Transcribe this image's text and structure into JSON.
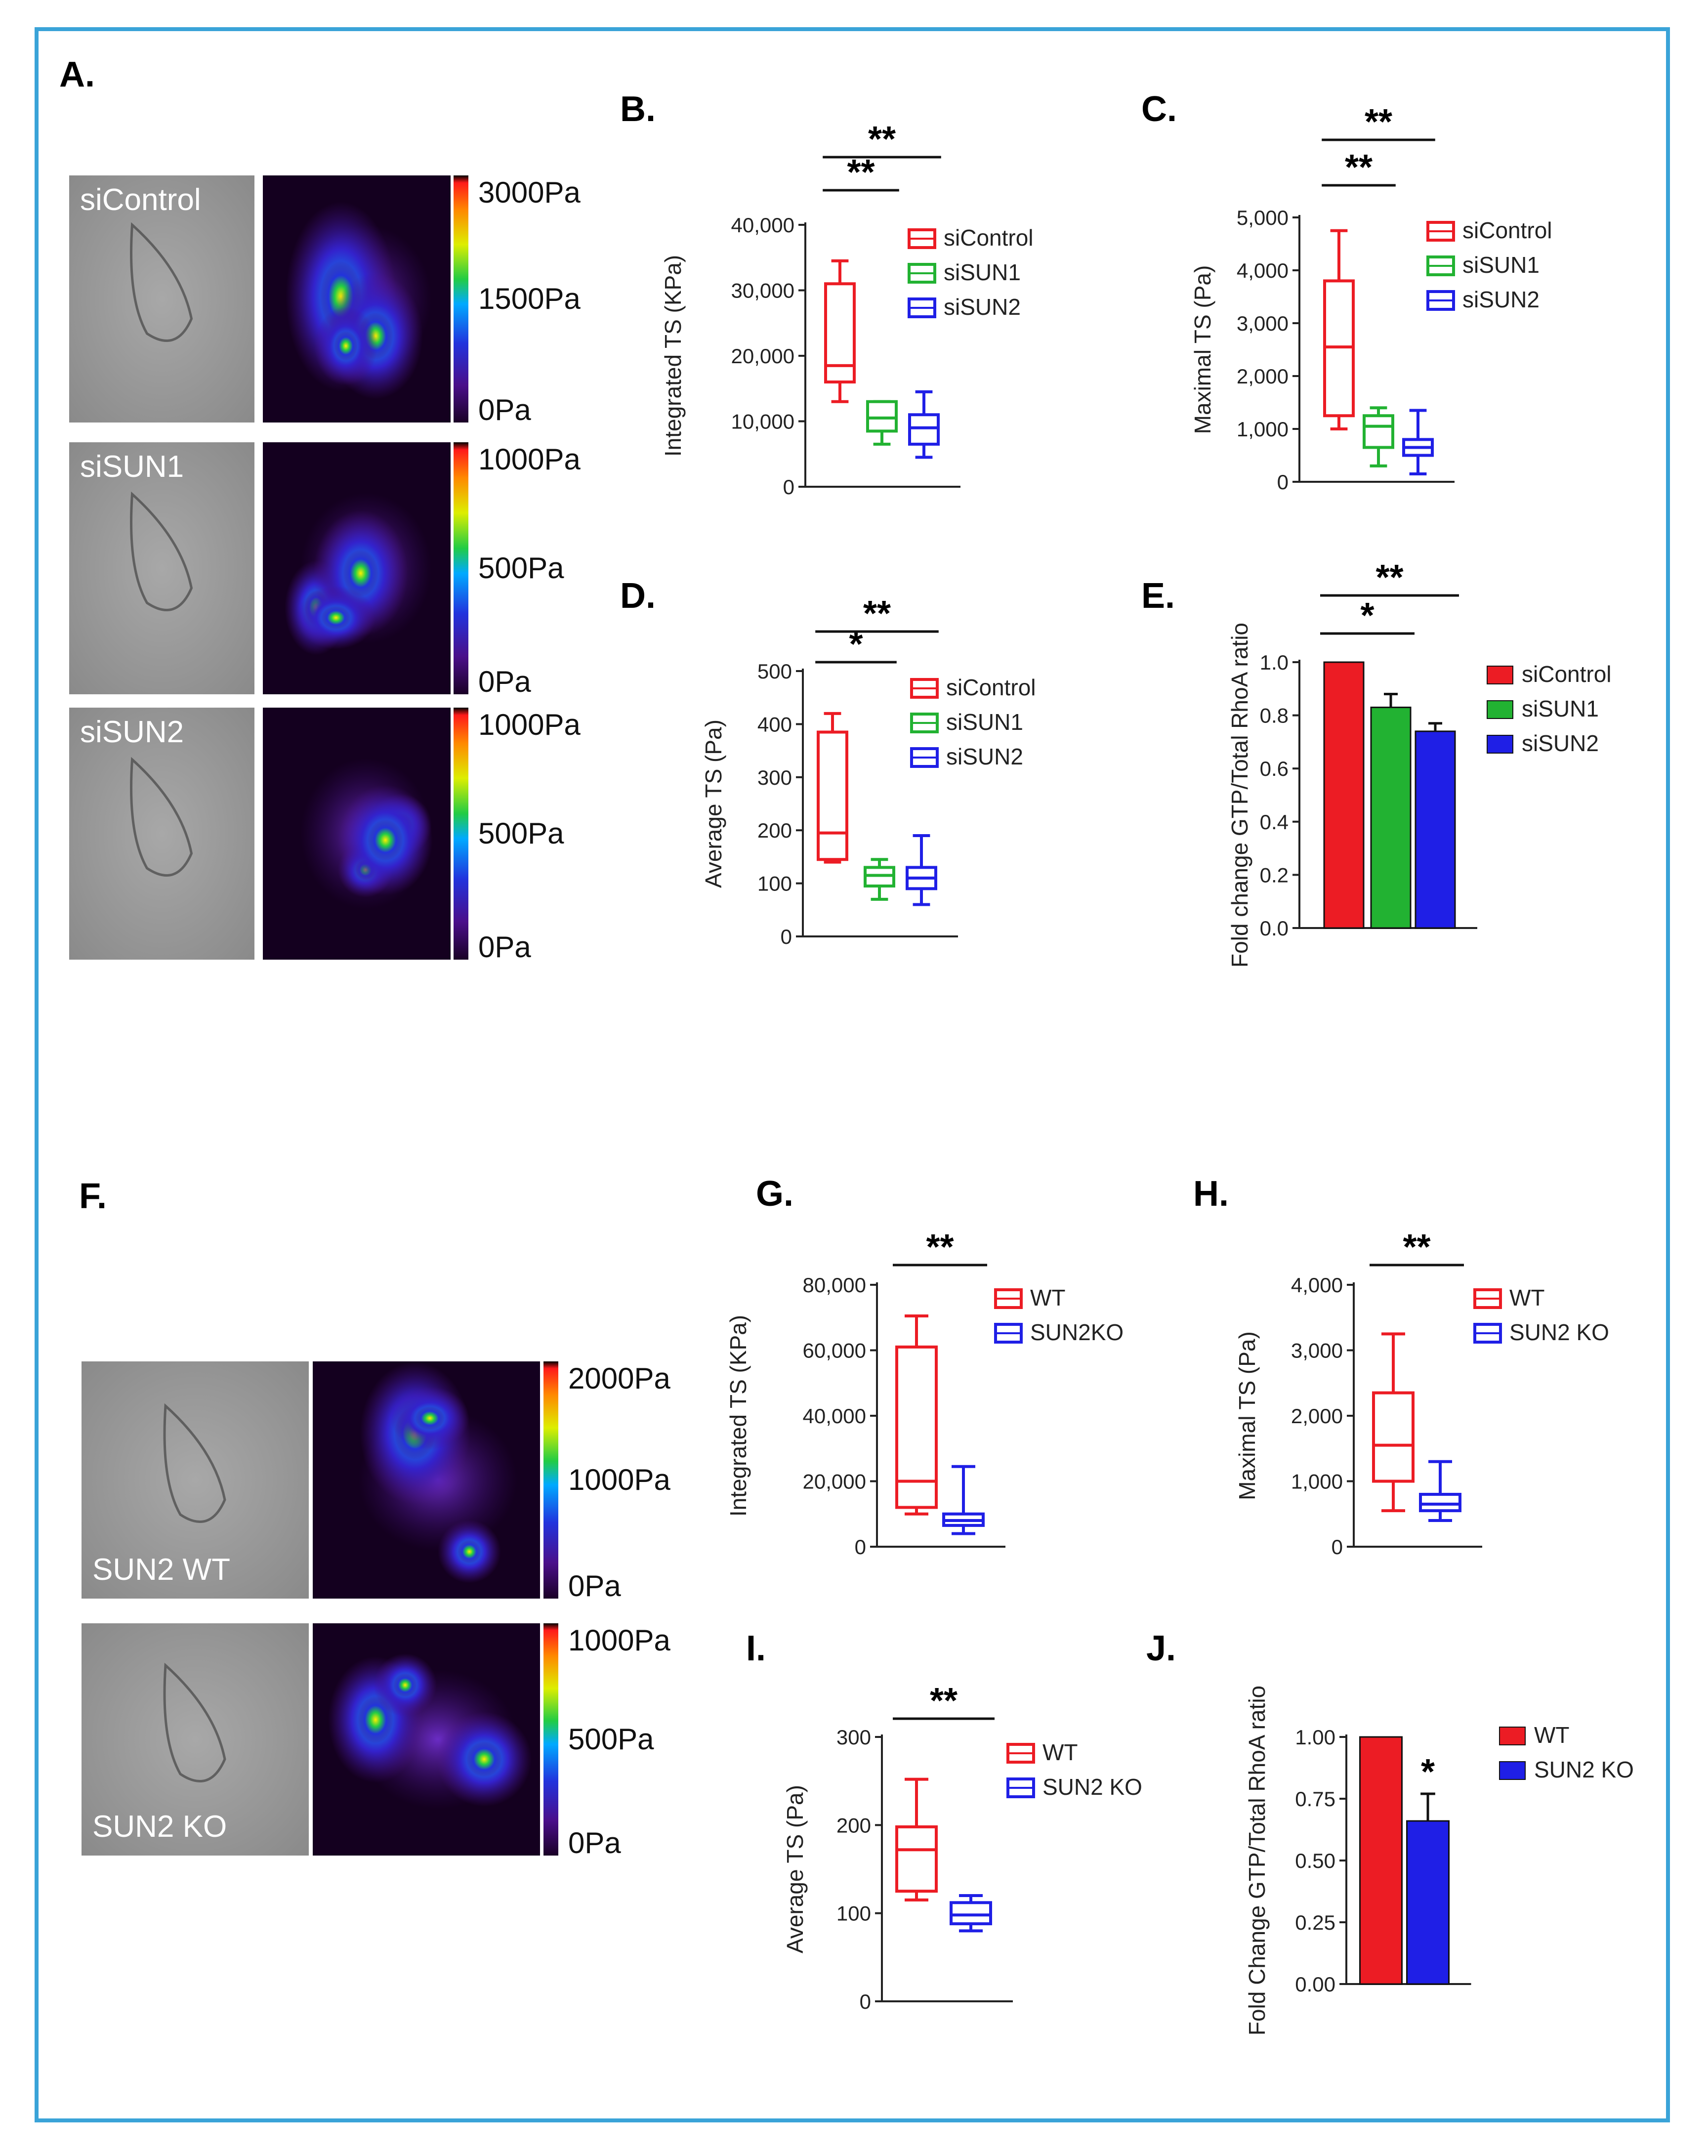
{
  "colors": {
    "red": "#ec1c24",
    "green": "#22b232",
    "blue": "#1f1fe6",
    "frame": "#3aa3d8"
  },
  "images": {
    "A": {
      "letter": "A.",
      "rows": [
        {
          "label": "siControl",
          "scale": [
            "3000Pa",
            "1500Pa",
            "0Pa"
          ]
        },
        {
          "label": "siSUN1",
          "scale": [
            "1000Pa",
            "500Pa",
            "0Pa"
          ]
        },
        {
          "label": "siSUN2",
          "scale": [
            "1000Pa",
            "500Pa",
            "0Pa"
          ]
        }
      ]
    },
    "F": {
      "letter": "F.",
      "rows": [
        {
          "label": "SUN2 WT",
          "scale": [
            "2000Pa",
            "1000Pa",
            "0Pa"
          ]
        },
        {
          "label": "SUN2 KO",
          "scale": [
            "1000Pa",
            "500Pa",
            "0Pa"
          ]
        }
      ]
    }
  },
  "chart_data": [
    {
      "id": "B",
      "letter": "B.",
      "type": "box",
      "ylabel": "Integrated TS (KPa)",
      "ylim": [
        0,
        40000
      ],
      "ticks": [
        {
          "v": 0,
          "t": "0"
        },
        {
          "v": 10000,
          "t": "10,000"
        },
        {
          "v": 20000,
          "t": "20,000"
        },
        {
          "v": 30000,
          "t": "30,000"
        },
        {
          "v": 40000,
          "t": "40,000"
        }
      ],
      "series": [
        {
          "name": "siControl",
          "color": "red",
          "min": 13000,
          "q1": 16000,
          "med": 18500,
          "q3": 31000,
          "max": 34500
        },
        {
          "name": "siSUN1",
          "color": "green",
          "min": 6500,
          "q1": 8500,
          "med": 10500,
          "q3": 13000,
          "max": 13000
        },
        {
          "name": "siSUN2",
          "color": "blue",
          "min": 4500,
          "q1": 6500,
          "med": 9000,
          "q3": 11000,
          "max": 14500
        }
      ],
      "sig": [
        {
          "label": "**",
          "from": 0,
          "to": 1
        },
        {
          "label": "**",
          "from": 0,
          "to": 2
        }
      ]
    },
    {
      "id": "C",
      "letter": "C.",
      "type": "box",
      "ylabel": "Maximal TS (Pa)",
      "ylim": [
        0,
        5000
      ],
      "ticks": [
        {
          "v": 0,
          "t": "0"
        },
        {
          "v": 1000,
          "t": "1,000"
        },
        {
          "v": 2000,
          "t": "2,000"
        },
        {
          "v": 3000,
          "t": "3,000"
        },
        {
          "v": 4000,
          "t": "4,000"
        },
        {
          "v": 5000,
          "t": "5,000"
        }
      ],
      "series": [
        {
          "name": "siControl",
          "color": "red",
          "min": 1000,
          "q1": 1250,
          "med": 2550,
          "q3": 3800,
          "max": 4750
        },
        {
          "name": "siSUN1",
          "color": "green",
          "min": 300,
          "q1": 650,
          "med": 1050,
          "q3": 1250,
          "max": 1400
        },
        {
          "name": "siSUN2",
          "color": "blue",
          "min": 150,
          "q1": 500,
          "med": 650,
          "q3": 800,
          "max": 1350
        }
      ],
      "sig": [
        {
          "label": "**",
          "from": 0,
          "to": 1
        },
        {
          "label": "**",
          "from": 0,
          "to": 2
        }
      ]
    },
    {
      "id": "D",
      "letter": "D.",
      "type": "box",
      "ylabel": "Average TS (Pa)",
      "ylim": [
        0,
        500
      ],
      "ticks": [
        {
          "v": 0,
          "t": "0"
        },
        {
          "v": 100,
          "t": "100"
        },
        {
          "v": 200,
          "t": "200"
        },
        {
          "v": 300,
          "t": "300"
        },
        {
          "v": 400,
          "t": "400"
        },
        {
          "v": 500,
          "t": "500"
        }
      ],
      "series": [
        {
          "name": "siControl",
          "color": "red",
          "min": 140,
          "q1": 145,
          "med": 195,
          "q3": 385,
          "max": 420
        },
        {
          "name": "siSUN1",
          "color": "green",
          "min": 70,
          "q1": 95,
          "med": 115,
          "q3": 130,
          "max": 145
        },
        {
          "name": "siSUN2",
          "color": "blue",
          "min": 60,
          "q1": 90,
          "med": 110,
          "q3": 130,
          "max": 190
        }
      ],
      "sig": [
        {
          "label": "*",
          "from": 0,
          "to": 1
        },
        {
          "label": "**",
          "from": 0,
          "to": 2
        }
      ]
    },
    {
      "id": "E",
      "letter": "E.",
      "type": "bar",
      "ylabel": "Fold change GTP/Total RhoA ratio",
      "ylim": [
        0,
        1.0
      ],
      "ticks": [
        {
          "v": 0,
          "t": "0.0"
        },
        {
          "v": 0.2,
          "t": "0.2"
        },
        {
          "v": 0.4,
          "t": "0.4"
        },
        {
          "v": 0.6,
          "t": "0.6"
        },
        {
          "v": 0.8,
          "t": "0.8"
        },
        {
          "v": 1.0,
          "t": "1.0"
        }
      ],
      "series": [
        {
          "name": "siControl",
          "color": "red",
          "value": 1.0,
          "err": 0
        },
        {
          "name": "siSUN1",
          "color": "green",
          "value": 0.83,
          "err": 0.05
        },
        {
          "name": "siSUN2",
          "color": "blue",
          "value": 0.74,
          "err": 0.03
        }
      ],
      "sig": [
        {
          "label": "*",
          "from": 0,
          "to": 1
        },
        {
          "label": "**",
          "from": 0,
          "to": 2
        }
      ]
    },
    {
      "id": "G",
      "letter": "G.",
      "type": "box",
      "ylabel": "Integrated TS (KPa)",
      "ylim": [
        0,
        80000
      ],
      "ticks": [
        {
          "v": 0,
          "t": "0"
        },
        {
          "v": 20000,
          "t": "20,000"
        },
        {
          "v": 40000,
          "t": "40,000"
        },
        {
          "v": 60000,
          "t": "60,000"
        },
        {
          "v": 80000,
          "t": "80,000"
        }
      ],
      "series": [
        {
          "name": "WT",
          "color": "red",
          "min": 10000,
          "q1": 12000,
          "med": 20000,
          "q3": 61000,
          "max": 70500
        },
        {
          "name": "SUN2KO",
          "color": "blue",
          "min": 4000,
          "q1": 6500,
          "med": 8000,
          "q3": 10000,
          "max": 24500
        }
      ],
      "sig": [
        {
          "label": "**",
          "from": 0,
          "to": 1
        }
      ]
    },
    {
      "id": "H",
      "letter": "H.",
      "type": "box",
      "ylabel": "Maximal TS (Pa)",
      "ylim": [
        0,
        4000
      ],
      "ticks": [
        {
          "v": 0,
          "t": "0"
        },
        {
          "v": 1000,
          "t": "1,000"
        },
        {
          "v": 2000,
          "t": "2,000"
        },
        {
          "v": 3000,
          "t": "3,000"
        },
        {
          "v": 4000,
          "t": "4,000"
        }
      ],
      "series": [
        {
          "name": "WT",
          "color": "red",
          "min": 550,
          "q1": 1000,
          "med": 1550,
          "q3": 2350,
          "max": 3250
        },
        {
          "name": "SUN2 KO",
          "color": "blue",
          "min": 400,
          "q1": 550,
          "med": 650,
          "q3": 800,
          "max": 1300
        }
      ],
      "sig": [
        {
          "label": "**",
          "from": 0,
          "to": 1
        }
      ]
    },
    {
      "id": "I",
      "letter": "I.",
      "type": "box",
      "ylabel": "Average TS (Pa)",
      "ylim": [
        0,
        300
      ],
      "ticks": [
        {
          "v": 0,
          "t": "0"
        },
        {
          "v": 100,
          "t": "100"
        },
        {
          "v": 200,
          "t": "200"
        },
        {
          "v": 300,
          "t": "300"
        }
      ],
      "series": [
        {
          "name": "WT",
          "color": "red",
          "min": 115,
          "q1": 125,
          "med": 172,
          "q3": 198,
          "max": 252
        },
        {
          "name": "SUN2 KO",
          "color": "blue",
          "min": 80,
          "q1": 88,
          "med": 98,
          "q3": 112,
          "max": 120
        }
      ],
      "sig": [
        {
          "label": "**",
          "from": 0,
          "to": 1
        }
      ]
    },
    {
      "id": "J",
      "letter": "J.",
      "type": "bar",
      "ylabel": "Fold Change GTP/Total RhoA ratio",
      "ylim": [
        0,
        1.0
      ],
      "ticks": [
        {
          "v": 0,
          "t": "0.00"
        },
        {
          "v": 0.25,
          "t": "0.25"
        },
        {
          "v": 0.5,
          "t": "0.50"
        },
        {
          "v": 0.75,
          "t": "0.75"
        },
        {
          "v": 1.0,
          "t": "1.00"
        }
      ],
      "series": [
        {
          "name": "WT",
          "color": "red",
          "value": 1.0,
          "err": 0
        },
        {
          "name": "SUN2 KO",
          "color": "blue",
          "value": 0.66,
          "err": 0.11
        }
      ],
      "sig": [
        {
          "label": "*",
          "over": 1
        }
      ]
    }
  ]
}
